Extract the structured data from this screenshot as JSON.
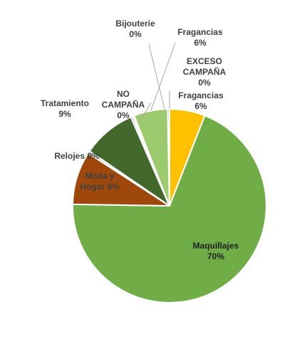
{
  "chart_data": {
    "type": "pie",
    "title": "",
    "slices": [
      {
        "lines": [
          "Fragancias",
          "6%"
        ],
        "value": 6,
        "color": "#ffc000",
        "label_color": "#404040"
      },
      {
        "lines": [
          "Maquillajes",
          "70%"
        ],
        "value": 70,
        "color": "#70ad47",
        "label_color": "#1f1f1f"
      },
      {
        "lines": [
          "Moda y",
          "Hogar 9%"
        ],
        "value": 9,
        "color": "#9e480e",
        "label_color": "#404040"
      },
      {
        "lines": [
          "Relojes 0%"
        ],
        "value": 0.4,
        "color": "#bfbfbf",
        "label_color": "#404040"
      },
      {
        "lines": [
          "Tratamiento",
          "9%"
        ],
        "value": 9,
        "color": "#43682b",
        "label_color": "#404040"
      },
      {
        "lines": [
          "NO",
          "CAMPAÑA",
          "0%"
        ],
        "value": 0.3,
        "color": "#264478",
        "label_color": "#404040"
      },
      {
        "lines": [
          "Bijouterie",
          "0%"
        ],
        "value": 0.3,
        "color": "#d9d9d9",
        "label_color": "#404040"
      },
      {
        "lines": [
          "Fragancias",
          "6%"
        ],
        "value": 5.7,
        "color": "#9bcb6e",
        "label_color": "#404040"
      },
      {
        "lines": [
          "EXCESO",
          "CAMPAÑA",
          "0%"
        ],
        "value": 0.3,
        "color": "#a5a5a5",
        "label_color": "#404040"
      }
    ],
    "start_angle_deg": 0,
    "direction": "clockwise"
  }
}
